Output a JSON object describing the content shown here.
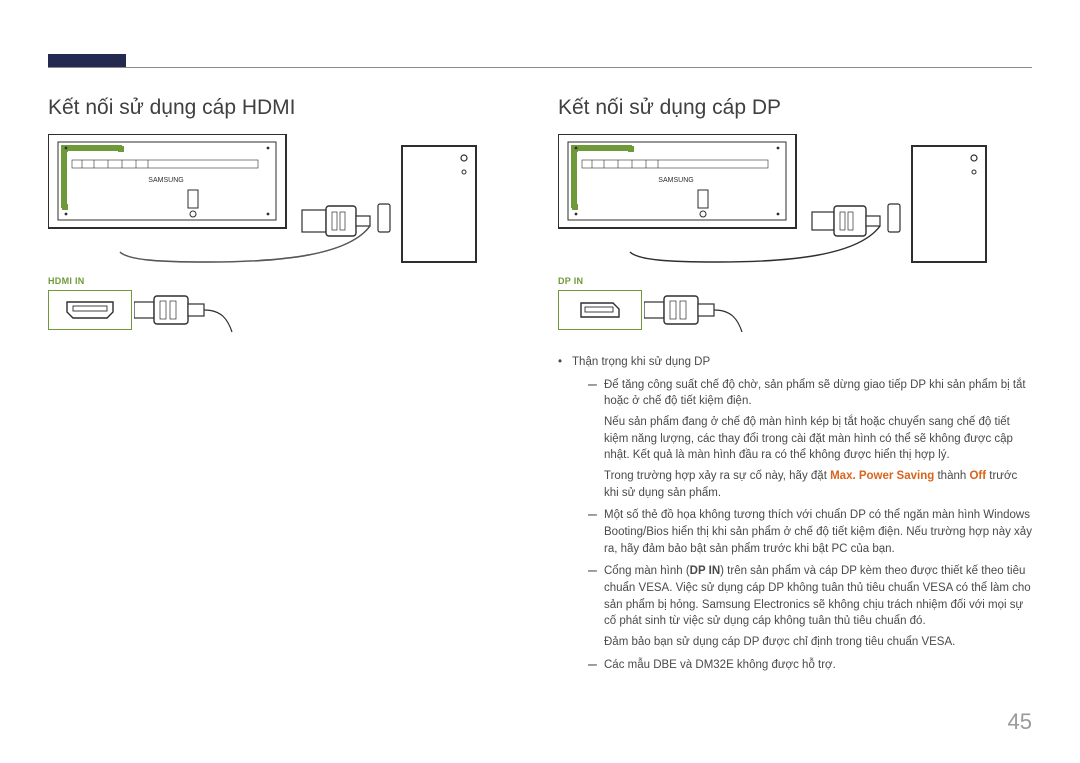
{
  "header": {
    "accent_color": "#23294f"
  },
  "left": {
    "title": "Kết nối sử dụng cáp HDMI",
    "port_label": "HDMI IN"
  },
  "right": {
    "title": "Kết nối sử dụng cáp DP",
    "port_label": "DP IN",
    "note_head": "Thận trọng khi sử dụng DP",
    "items": [
      {
        "paras": [
          "Để tăng công suất chế độ chờ, sản phẩm sẽ dừng giao tiếp DP khi sản phẩm bị tắt hoặc ở chế độ tiết kiệm điện.",
          "Nếu sản phẩm đang ở chế độ màn hình kép bị tắt hoặc chuyển sang chế độ tiết kiệm năng lượng, các thay đổi trong cài đặt màn hình có thể sẽ không được cập nhật. Kết quả là màn hình đầu ra có thể không được hiển thị hợp lý."
        ],
        "rich": "Trong trường hợp xảy ra sự cố này, hãy đặt <span class=\"orange\">Max. Power Saving</span> thành <span class=\"orange\">Off</span> trước khi sử dụng sản phẩm."
      },
      {
        "paras": [
          "Một số thẻ đồ họa không tương thích với chuẩn DP có thể ngăn màn hình Windows Booting/Bios hiển thị khi sản phẩm ở chế độ tiết kiệm điện. Nếu trường hợp này xảy ra, hãy đảm bảo bật sản phẩm trước khi bật PC của bạn."
        ]
      },
      {
        "rich": "Cổng màn hình (<span class=\"bold\">DP IN</span>) trên sản phẩm và cáp DP kèm theo được thiết kế theo tiêu chuẩn VESA. Việc sử dụng cáp DP không tuân thủ tiêu chuẩn VESA có thể làm cho sản phẩm bị hỏng. Samsung Electronics sẽ không chịu trách nhiệm đối với mọi sự cố phát sinh từ việc sử dụng cáp không tuân thủ tiêu chuẩn đó.",
        "tail": "Đảm bảo bạn sử dụng cáp DP được chỉ định trong tiêu chuẩn VESA."
      },
      {
        "paras": [
          "Các mẫu DBE và DM32E không được hỗ trợ."
        ]
      }
    ]
  },
  "page_number": "45",
  "diagram": {
    "monitor_label": "SAMSUNG",
    "colors": {
      "stroke": "#2e2e2e",
      "green": "#6f9a3a",
      "light": "#ffffff"
    }
  }
}
